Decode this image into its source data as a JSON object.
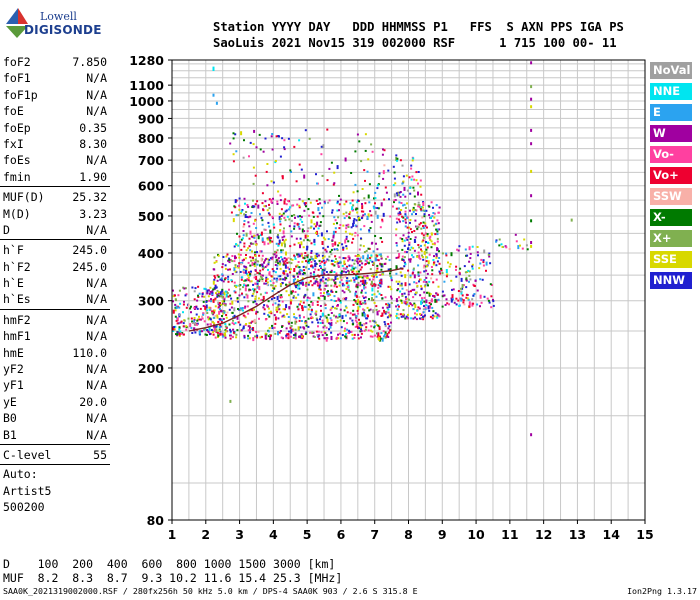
{
  "logo": {
    "line1": "Lowell",
    "line2": "DIGISONDE"
  },
  "header": {
    "line1": "Station YYYY DAY   DDD HHMMSS P1   FFS  S AXN PPS IGA PS",
    "line2": "SaoLuis 2021 Nov15 319 002000 RSF      1 715 100 00- 11"
  },
  "params": [
    {
      "label": "foF2",
      "value": "7.850"
    },
    {
      "label": "foF1",
      "value": "N/A"
    },
    {
      "label": "foF1p",
      "value": "N/A"
    },
    {
      "label": "foE",
      "value": "N/A"
    },
    {
      "label": "foEp",
      "value": "0.35"
    },
    {
      "label": "fxI",
      "value": "8.30"
    },
    {
      "label": "foEs",
      "value": "N/A"
    },
    {
      "label": "fmin",
      "value": "1.90"
    },
    {
      "sep": true
    },
    {
      "label": "MUF(D)",
      "value": "25.32"
    },
    {
      "label": "M(D)",
      "value": "3.23"
    },
    {
      "label": "D",
      "value": "N/A"
    },
    {
      "sep": true
    },
    {
      "label": "h`F",
      "value": "245.0"
    },
    {
      "label": "h`F2",
      "value": "245.0"
    },
    {
      "label": "h`E",
      "value": "N/A"
    },
    {
      "label": "h`Es",
      "value": "N/A"
    },
    {
      "sep": true
    },
    {
      "label": "hmF2",
      "value": "N/A"
    },
    {
      "label": "hmF1",
      "value": "N/A"
    },
    {
      "label": "hmE",
      "value": "110.0"
    },
    {
      "label": "yF2",
      "value": "N/A"
    },
    {
      "label": "yF1",
      "value": "N/A"
    },
    {
      "label": "yE",
      "value": "20.0"
    },
    {
      "label": "B0",
      "value": "N/A"
    },
    {
      "label": "B1",
      "value": "N/A"
    },
    {
      "sep": true
    },
    {
      "label": "C-level",
      "value": "55"
    },
    {
      "sep": true
    },
    {
      "text": "Auto:"
    },
    {
      "text": "Artist5"
    },
    {
      "text": "500200"
    }
  ],
  "legend": [
    {
      "label": "NoVal",
      "color": "#a0a0a0"
    },
    {
      "label": "NNE",
      "color": "#00e5f0"
    },
    {
      "label": "E",
      "color": "#2ba3f0"
    },
    {
      "label": "W",
      "color": "#a000a0"
    },
    {
      "label": "Vo-",
      "color": "#ff40a0"
    },
    {
      "label": "Vo+",
      "color": "#ee0030"
    },
    {
      "label": "SSW",
      "color": "#f8b0a8"
    },
    {
      "label": "X-",
      "color": "#007a00"
    },
    {
      "label": "X+",
      "color": "#80b050"
    },
    {
      "label": "SSE",
      "color": "#d8d800"
    },
    {
      "label": "NNW",
      "color": "#2020d0"
    }
  ],
  "chart_data": {
    "type": "scatter",
    "xlim": [
      1,
      15
    ],
    "ylim": [
      80,
      1280
    ],
    "y_scale": "log",
    "x_ticks": [
      "1",
      "2",
      "3",
      "4",
      "5",
      "6",
      "7",
      "8",
      "9",
      "10",
      "11",
      "12",
      "13",
      "14",
      "15"
    ],
    "y_ticks": [
      "80",
      "200",
      "300",
      "400",
      "500",
      "600",
      "700",
      "800",
      "900",
      "1000",
      "1100",
      "1280"
    ],
    "grid": true,
    "point_color_key": "legend",
    "clusters": [
      {
        "x0": 1.0,
        "x1": 2.6,
        "y0": 245,
        "y1": 330,
        "n": 260
      },
      {
        "x0": 2.2,
        "x1": 7.5,
        "y0": 240,
        "y1": 400,
        "n": 1100
      },
      {
        "x0": 2.8,
        "x1": 7.2,
        "y0": 330,
        "y1": 560,
        "n": 650
      },
      {
        "x0": 2.6,
        "x1": 7.6,
        "y0": 500,
        "y1": 850,
        "n": 170
      },
      {
        "x0": 7.6,
        "x1": 8.9,
        "y0": 270,
        "y1": 550,
        "n": 420
      },
      {
        "x0": 7.5,
        "x1": 8.4,
        "y0": 550,
        "y1": 730,
        "n": 50
      },
      {
        "x0": 8.9,
        "x1": 10.5,
        "y0": 290,
        "y1": 420,
        "n": 140
      },
      {
        "x0": 10.3,
        "x1": 11.5,
        "y0": 410,
        "y1": 450,
        "n": 18
      }
    ],
    "points": [
      {
        "x": 2.2,
        "y": 1220,
        "c": "#00e5f0"
      },
      {
        "x": 2.2,
        "y": 1230,
        "c": "#00e5f0"
      },
      {
        "x": 2.2,
        "y": 1045,
        "c": "#2ba3f0"
      },
      {
        "x": 2.3,
        "y": 995,
        "c": "#2ba3f0"
      },
      {
        "x": 11.6,
        "y": 1270,
        "c": "#a000a0"
      },
      {
        "x": 11.6,
        "y": 1100,
        "c": "#80b050"
      },
      {
        "x": 11.6,
        "y": 1020,
        "c": "#a000a0"
      },
      {
        "x": 11.6,
        "y": 975,
        "c": "#d8d800"
      },
      {
        "x": 11.6,
        "y": 845,
        "c": "#a000a0"
      },
      {
        "x": 11.6,
        "y": 780,
        "c": "#a000a0"
      },
      {
        "x": 11.6,
        "y": 660,
        "c": "#d8d800"
      },
      {
        "x": 11.6,
        "y": 570,
        "c": "#a000a0"
      },
      {
        "x": 11.6,
        "y": 490,
        "c": "#007a00"
      },
      {
        "x": 11.6,
        "y": 430,
        "c": "#a000a0"
      },
      {
        "x": 11.6,
        "y": 420,
        "c": "#d8d800"
      },
      {
        "x": 11.6,
        "y": 135,
        "c": "#a000a0"
      },
      {
        "x": 12.8,
        "y": 492,
        "c": "#80b050"
      },
      {
        "x": 2.7,
        "y": 165,
        "c": "#80b050"
      },
      {
        "x": 3.4,
        "y": 840,
        "c": "#a000a0"
      }
    ],
    "trace": [
      {
        "x": 1.5,
        "y": 250
      },
      {
        "x": 2.0,
        "y": 255
      },
      {
        "x": 2.5,
        "y": 262
      },
      {
        "x": 3.0,
        "y": 275
      },
      {
        "x": 3.5,
        "y": 290
      },
      {
        "x": 4.0,
        "y": 310
      },
      {
        "x": 4.5,
        "y": 330
      },
      {
        "x": 5.0,
        "y": 345
      },
      {
        "x": 5.5,
        "y": 350
      },
      {
        "x": 6.0,
        "y": 350
      },
      {
        "x": 6.5,
        "y": 352
      },
      {
        "x": 7.0,
        "y": 355
      },
      {
        "x": 7.5,
        "y": 360
      },
      {
        "x": 7.85,
        "y": 365
      }
    ]
  },
  "dmuf": {
    "d_line": "D    100  200  400  600  800 1000 1500 3000 [km]",
    "muf_line": "MUF  8.2  8.3  8.7  9.3 10.2 11.6 15.4 25.3 [MHz]"
  },
  "footer": {
    "left": "SAA0K_2021319002000.RSF / 280fx256h 50 kHz 5.0 km / DPS-4 SAA0K 903 / 2.6 S 315.8 E",
    "right": "Ion2Png 1.3.17"
  }
}
